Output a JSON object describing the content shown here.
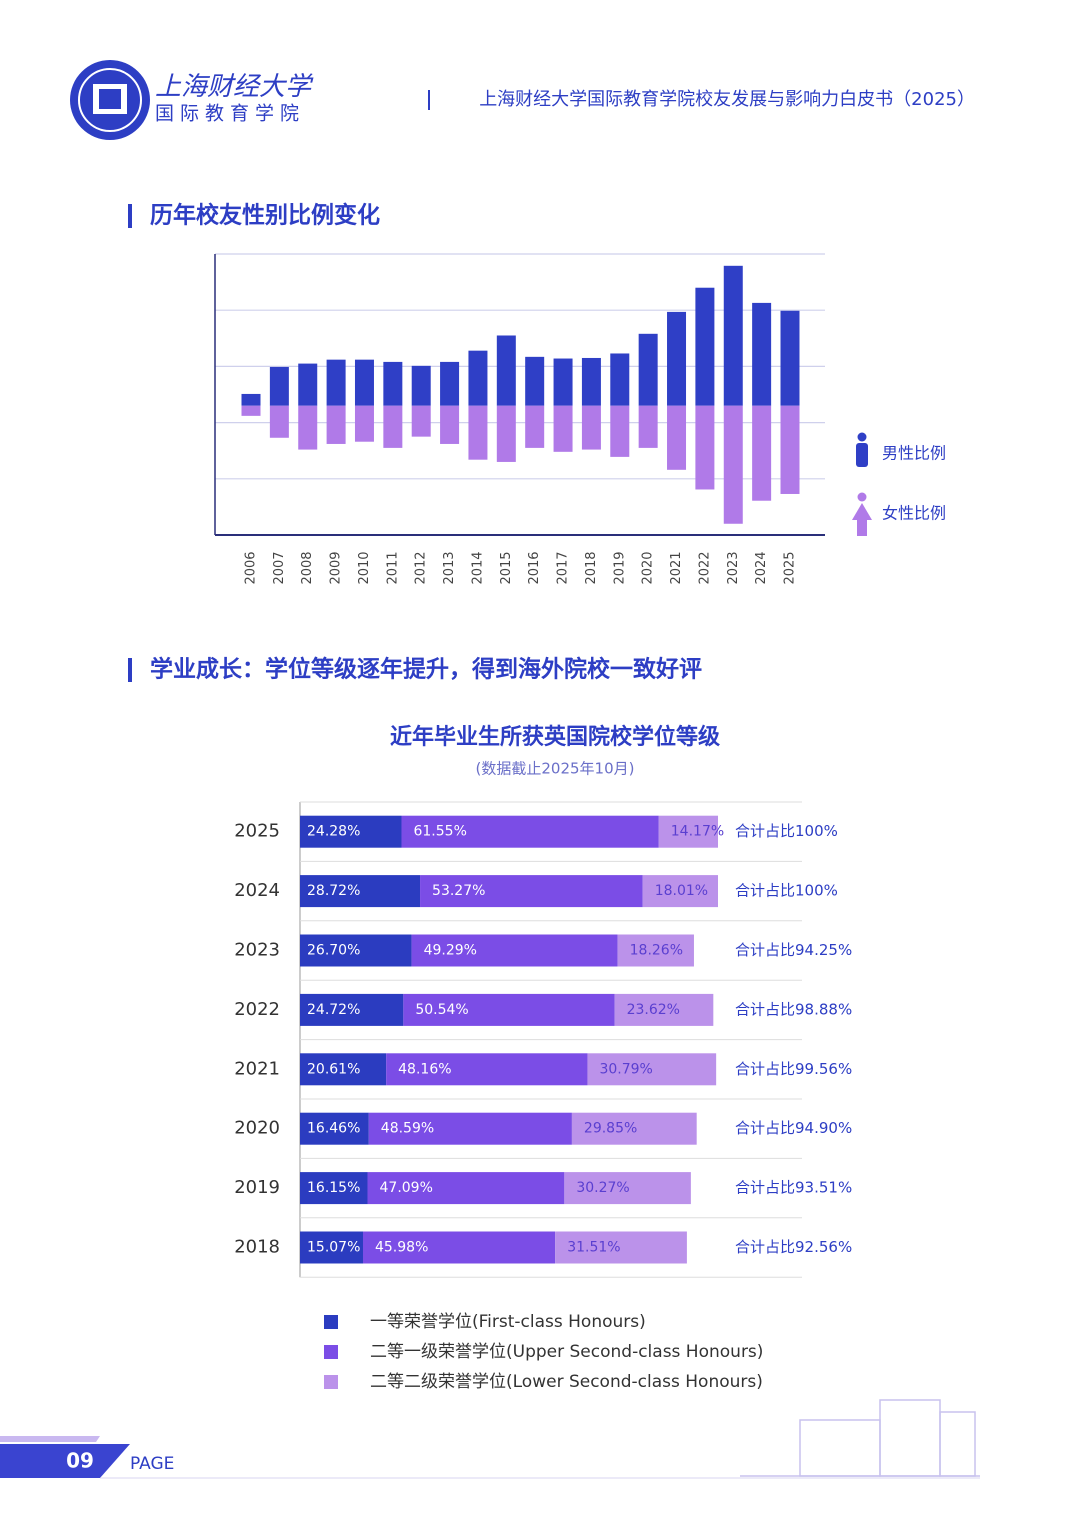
{
  "header": {
    "logo_title": "上海财经大学",
    "logo_subtitle": "国际教育学院",
    "report_title": "上海财经大学国际教育学院校友发展与影响力白皮书（2025）"
  },
  "sections": [
    "历年校友性别比例变化",
    "学业成长：学位等级逐年提升，得到海外院校一致好评"
  ],
  "chart_data": [
    {
      "type": "diverging_bar",
      "categories": [
        "2006",
        "2007",
        "2008",
        "2009",
        "2010",
        "2011",
        "2012",
        "2013",
        "2014",
        "2015",
        "2016",
        "2017",
        "2018",
        "2019",
        "2020",
        "2021",
        "2022",
        "2023",
        "2024",
        "2025"
      ],
      "series": [
        {
          "name": "男性比例",
          "color": "#2f3fc6",
          "values": [
            2.1,
            6.9,
            7.5,
            8.2,
            8.2,
            7.8,
            7.1,
            7.8,
            9.8,
            12.5,
            8.7,
            8.4,
            8.5,
            9.3,
            12.8,
            16.7,
            21.0,
            24.9,
            18.3,
            16.9
          ]
        },
        {
          "name": "女性比例",
          "color": "#b07ae8",
          "values": [
            -1.8,
            -5.7,
            -7.8,
            -6.8,
            -6.4,
            -7.5,
            -5.5,
            -6.8,
            -9.6,
            -10.0,
            -7.5,
            -8.2,
            -7.8,
            -9.1,
            -7.5,
            -11.4,
            -14.9,
            -21.0,
            -16.9,
            -15.7
          ]
        }
      ],
      "ylim": [
        -23,
        27
      ],
      "yticks": [
        -23,
        -13,
        -3,
        7,
        17,
        27
      ],
      "grid": true,
      "legend": "right"
    },
    {
      "type": "stacked_barh",
      "title": "近年毕业生所获英国院校学位等级",
      "subtitle": "(数据截止2025年10月)",
      "categories": [
        "2025",
        "2024",
        "2023",
        "2022",
        "2021",
        "2020",
        "2019",
        "2018"
      ],
      "series": [
        {
          "name": "一等荣誉学位(First-class Honours)",
          "color": "#2b3cc0",
          "values": [
            24.28,
            28.72,
            26.7,
            24.72,
            20.61,
            16.46,
            16.15,
            15.07
          ],
          "value_labels": [
            "24.28%",
            "28.72%",
            "26.70%",
            "24.72%",
            "20.61%",
            "16.46%",
            "16.15%",
            "15.07%"
          ]
        },
        {
          "name": "二等一级荣誉学位(Upper Second-class Honours)",
          "color": "#7b4de6",
          "values": [
            61.55,
            53.27,
            49.29,
            50.54,
            48.16,
            48.59,
            47.09,
            45.98
          ],
          "value_labels": [
            "61.55%",
            "53.27%",
            "49.29%",
            "50.54%",
            "48.16%",
            "48.59%",
            "47.09%",
            "45.98%"
          ]
        },
        {
          "name": "二等二级荣誉学位(Lower Second-class Honours)",
          "color": "#bb92ea",
          "values": [
            14.17,
            18.01,
            18.26,
            23.62,
            30.79,
            29.85,
            30.27,
            31.51
          ],
          "value_labels": [
            "14.17%",
            "18.01%",
            "18.26%",
            "23.62%",
            "30.79%",
            "29.85%",
            "30.27%",
            "31.51%"
          ]
        }
      ],
      "annotations": [
        "合计占比100%",
        "合计占比100%",
        "合计占比94.25%",
        "合计占比98.88%",
        "合计占比99.56%",
        "合计占比94.90%",
        "合计占比93.51%",
        "合计占比92.56%"
      ],
      "xlim": [
        0,
        100
      ],
      "legend": "bottom"
    }
  ],
  "footer": {
    "page": "09",
    "label": "PAGE"
  }
}
